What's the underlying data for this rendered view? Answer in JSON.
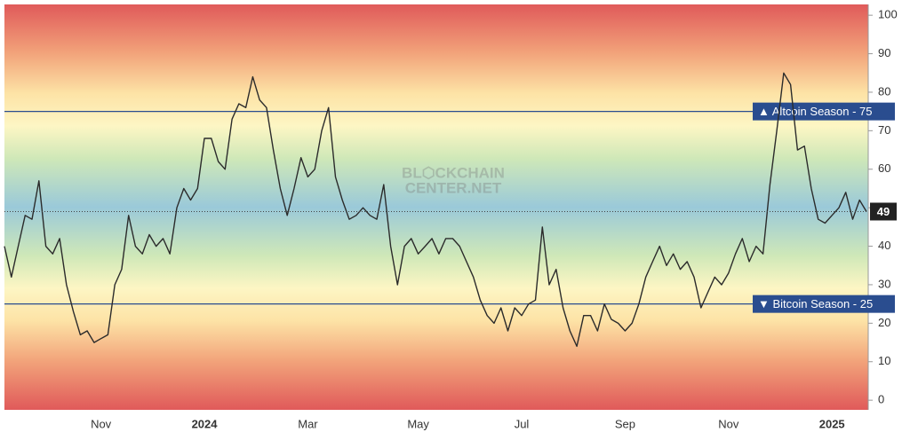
{
  "chart_data": {
    "type": "line",
    "categories": [
      null,
      null,
      null,
      null,
      null,
      null,
      null,
      null,
      null,
      null,
      null,
      null,
      null,
      null,
      "Nov",
      null,
      null,
      null,
      null,
      null,
      null,
      null,
      null,
      null,
      null,
      null,
      null,
      null,
      null,
      "2024",
      null,
      null,
      null,
      null,
      null,
      null,
      null,
      null,
      null,
      null,
      null,
      null,
      null,
      null,
      "Mar",
      null,
      null,
      null,
      null,
      null,
      null,
      null,
      null,
      null,
      null,
      null,
      null,
      null,
      null,
      null,
      "May",
      null,
      null,
      null,
      null,
      null,
      null,
      null,
      null,
      null,
      null,
      null,
      null,
      null,
      null,
      "Jul",
      null,
      null,
      null,
      null,
      null,
      null,
      null,
      null,
      null,
      null,
      null,
      null,
      null,
      null,
      "Sep",
      null,
      null,
      null,
      null,
      null,
      null,
      null,
      null,
      null,
      null,
      null,
      null,
      null,
      null,
      "Nov",
      null,
      null,
      null,
      null,
      null,
      null,
      null,
      null,
      null,
      null,
      null,
      null,
      null,
      null,
      "2025",
      null,
      null,
      null,
      null,
      null
    ],
    "values": [
      40,
      32,
      40,
      48,
      47,
      57,
      40,
      38,
      42,
      30,
      23,
      17,
      18,
      15,
      16,
      17,
      30,
      34,
      48,
      40,
      38,
      43,
      40,
      42,
      38,
      50,
      55,
      52,
      55,
      68,
      68,
      62,
      60,
      73,
      77,
      76,
      84,
      78,
      76,
      65,
      55,
      48,
      55,
      63,
      58,
      60,
      70,
      76,
      58,
      52,
      47,
      48,
      50,
      48,
      47,
      56,
      40,
      30,
      40,
      42,
      38,
      40,
      42,
      38,
      42,
      42,
      40,
      36,
      32,
      26,
      22,
      20,
      24,
      18,
      24,
      22,
      25,
      26,
      45,
      30,
      34,
      24,
      18,
      14,
      22,
      22,
      18,
      25,
      21,
      20,
      18,
      20,
      25,
      32,
      36,
      40,
      35,
      38,
      34,
      36,
      32,
      24,
      28,
      32,
      30,
      33,
      38,
      42,
      36,
      40,
      38,
      56,
      70,
      85,
      82,
      65,
      66,
      55,
      47,
      46,
      48,
      50,
      54,
      47,
      52,
      49
    ],
    "color": "#2b2b2b",
    "ylim": [
      -2.5,
      102.8
    ],
    "yticks": [
      0,
      10,
      20,
      30,
      40,
      50,
      60,
      70,
      80,
      90,
      100
    ],
    "reference_lines": [
      {
        "value": 75,
        "label": "▲ Altcoin Season - 75"
      },
      {
        "value": 25,
        "label": "▼ Bitcoin Season - 25"
      }
    ],
    "reference_color": "#2a4d8f",
    "watermark": [
      "BL⬡CKCHAIN",
      "CENTER.NET"
    ]
  }
}
